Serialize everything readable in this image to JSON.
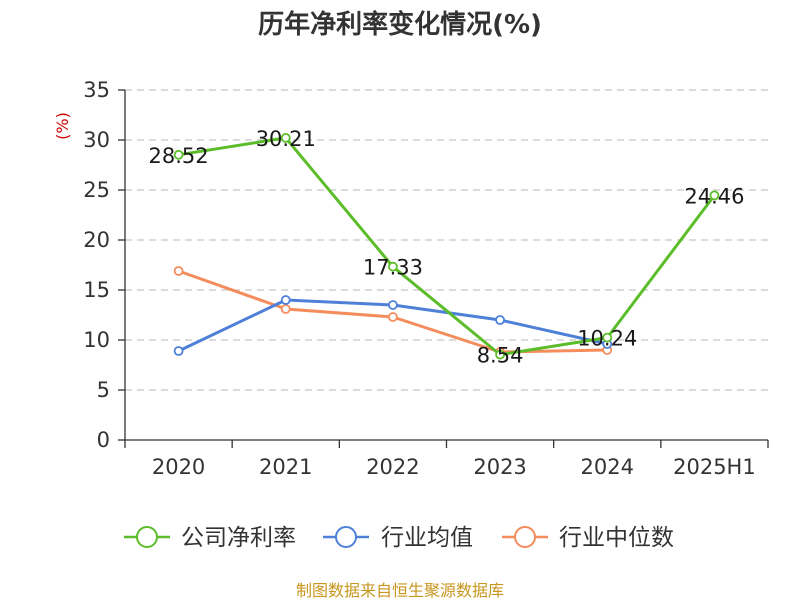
{
  "colors": {
    "net_margin": "#5cbd2a",
    "industry_avg": "#4e80d8",
    "industry_median": "#f58c5c",
    "ylabel": "#cc0000",
    "source": "#c8961e",
    "grid": "#c8c8c8",
    "axis": "#333333"
  },
  "source_text": "制图数据来自恒生聚源数据库",
  "chart_data": {
    "type": "line",
    "title": "历年净利率变化情况(%)",
    "ylabel": "(%)",
    "xlabel": "",
    "categories": [
      "2020",
      "2021",
      "2022",
      "2023",
      "2024",
      "2025H1"
    ],
    "ylim": [
      0,
      35
    ],
    "yticks": [
      0,
      5,
      10,
      15,
      20,
      25,
      30,
      35
    ],
    "grid": true,
    "legend_position": "bottom",
    "series": [
      {
        "name": "公司净利率",
        "color_key": "net_margin",
        "values": [
          28.52,
          30.21,
          17.33,
          8.54,
          10.24,
          24.46
        ],
        "labels": [
          "28.52",
          "30.21",
          "17.33",
          "8.54",
          "10.24",
          "24.46"
        ]
      },
      {
        "name": "行业均值",
        "color_key": "industry_avg",
        "values": [
          8.9,
          14.0,
          13.5,
          12.0,
          9.6,
          null
        ]
      },
      {
        "name": "行业中位数",
        "color_key": "industry_median",
        "values": [
          16.9,
          13.1,
          12.3,
          8.8,
          9.0,
          null
        ]
      }
    ]
  }
}
